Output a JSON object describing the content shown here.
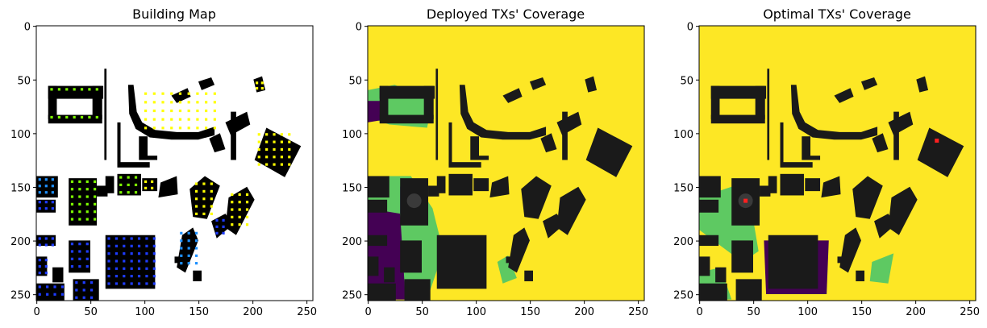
{
  "chart_data": [
    {
      "type": "heatmap",
      "title": "Building Map",
      "xlim": [
        0,
        255
      ],
      "ylim": [
        255,
        0
      ],
      "xticks": [
        0,
        50,
        100,
        150,
        200,
        250
      ],
      "yticks": [
        0,
        50,
        100,
        150,
        200,
        250
      ],
      "background": "#ffffff",
      "legend": "none"
    },
    {
      "type": "heatmap",
      "title": "Deployed TXs' Coverage",
      "xlim": [
        0,
        255
      ],
      "ylim": [
        255,
        0
      ],
      "xticks": [
        0,
        50,
        100,
        150,
        200,
        250
      ],
      "yticks": [
        0,
        50,
        100,
        150,
        200,
        250
      ],
      "colormap": [
        "#440154",
        "#31688e",
        "#35b779",
        "#5ec962",
        "#fde725"
      ],
      "legend": "none"
    },
    {
      "type": "heatmap",
      "title": "Optimal TXs' Coverage",
      "xlim": [
        0,
        255
      ],
      "ylim": [
        255,
        0
      ],
      "xticks": [
        0,
        50,
        100,
        150,
        200,
        250
      ],
      "yticks": [
        0,
        50,
        100,
        150,
        200,
        250
      ],
      "colormap": [
        "#440154",
        "#31688e",
        "#35b779",
        "#5ec962",
        "#fde725"
      ],
      "tx_points": [
        [
          220,
          107
        ],
        [
          43,
          163
        ]
      ],
      "legend": "none"
    }
  ],
  "colors": {
    "building": "#000000",
    "building_gray": "#1a1a1a",
    "coverage_high": "#fde725",
    "coverage_mid": "#5ec962",
    "coverage_low": "#31688e",
    "coverage_none": "#440154",
    "tx_marker": "#ff2020",
    "tx_dots_green": "#7cfc00",
    "tx_dots_yellow": "#ffff00",
    "tx_dots_blue": "#1e3cff",
    "tx_dots_cyan": "#1e90ff"
  }
}
